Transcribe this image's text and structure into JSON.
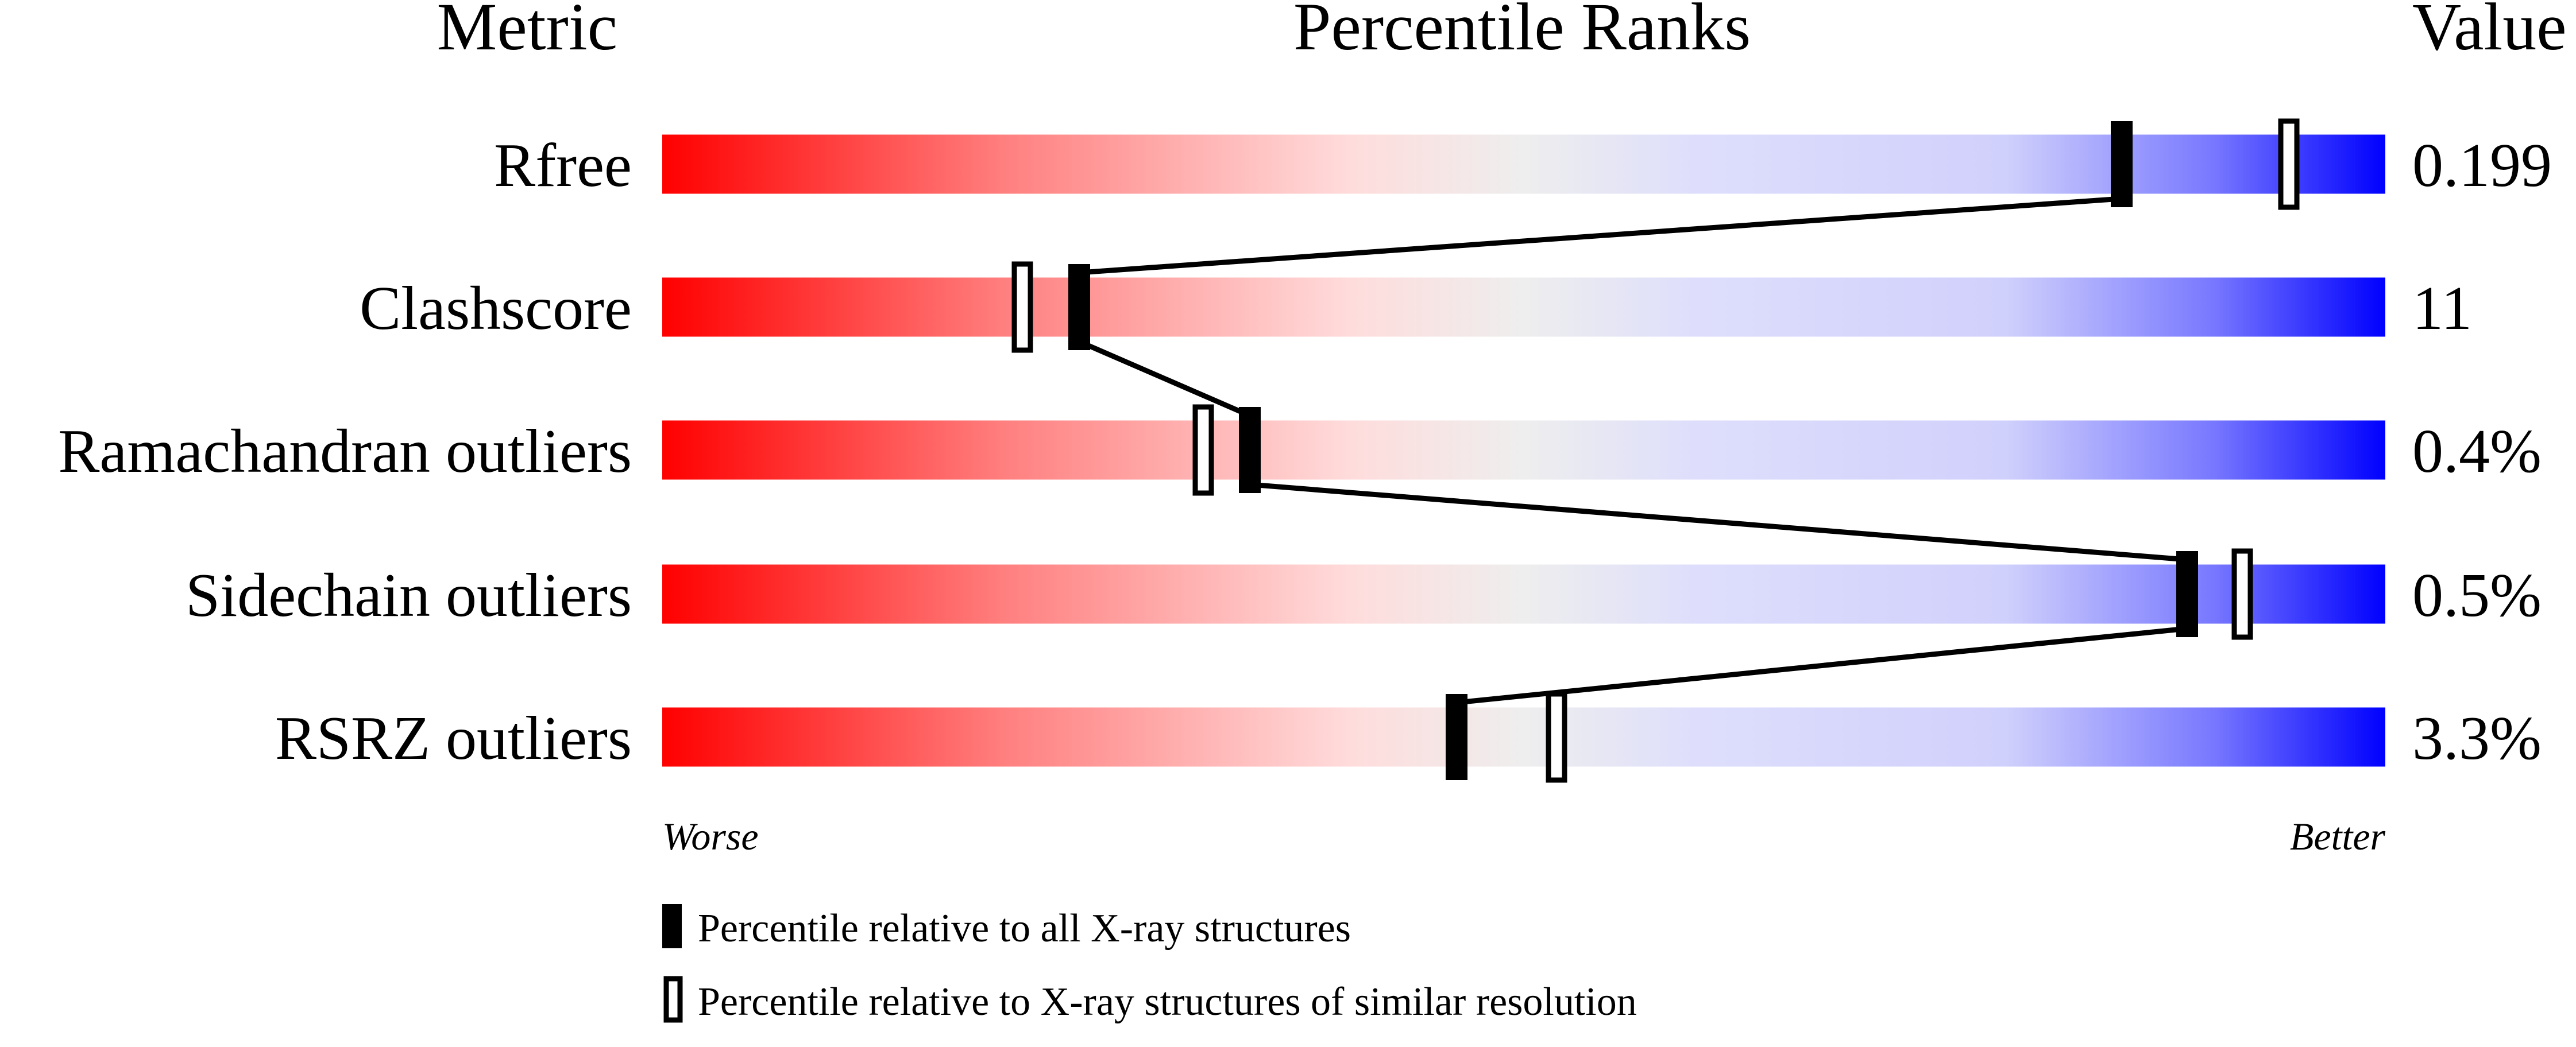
{
  "chart_data": {
    "type": "percentile-slider",
    "headers": {
      "metric": "Metric",
      "ranks": "Percentile Ranks",
      "value": "Value"
    },
    "xlim": [
      0,
      100
    ],
    "metrics": [
      {
        "name": "Rfree",
        "value": "0.199",
        "percentile_all": 84.7,
        "percentile_similar": 94.4
      },
      {
        "name": "Clashscore",
        "value": "11",
        "percentile_all": 24.2,
        "percentile_similar": 20.9
      },
      {
        "name": "Ramachandran outliers",
        "value": "0.4%",
        "percentile_all": 34.1,
        "percentile_similar": 31.4
      },
      {
        "name": "Sidechain outliers",
        "value": "0.5%",
        "percentile_all": 88.5,
        "percentile_similar": 91.7
      },
      {
        "name": "RSRZ outliers",
        "value": "3.3%",
        "percentile_all": 46.1,
        "percentile_similar": 51.9
      }
    ],
    "axis_labels": {
      "left": "Worse",
      "right": "Better"
    },
    "legend": [
      {
        "marker": "filled",
        "label": "Percentile relative to all X-ray structures"
      },
      {
        "marker": "hollow",
        "label": "Percentile relative to X-ray structures of similar resolution"
      }
    ],
    "colors": {
      "worse": "#ff0000",
      "middle": "#eeeeee",
      "better": "#0000ff"
    }
  }
}
